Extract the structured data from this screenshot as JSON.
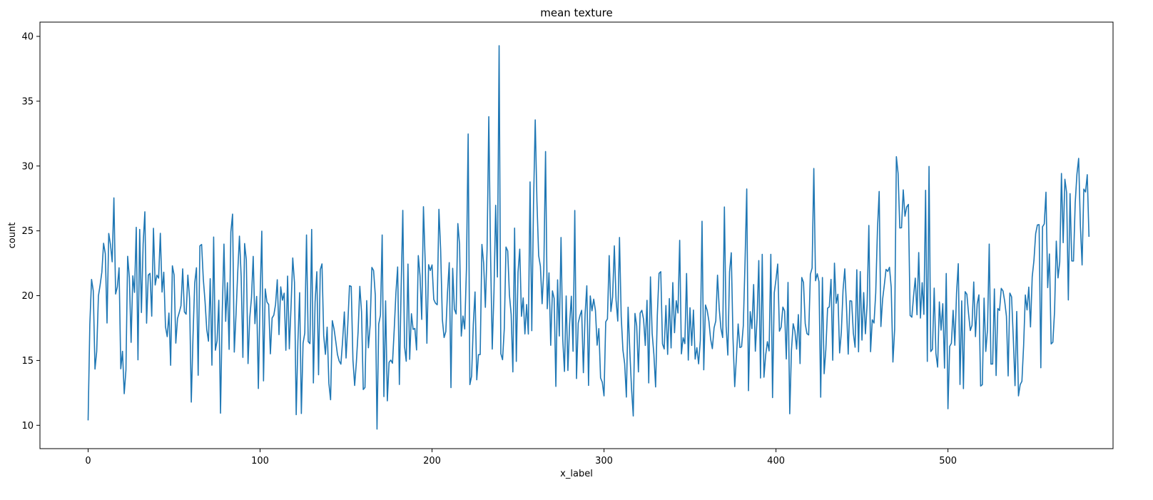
{
  "chart_data": {
    "type": "line",
    "title": "mean texture",
    "xlabel": "x_label",
    "ylabel": "count",
    "xlim": [
      -28,
      596
    ],
    "ylim": [
      8.2,
      41.1
    ],
    "xticks": [
      0,
      100,
      200,
      300,
      400,
      500
    ],
    "yticks": [
      10,
      15,
      20,
      25,
      30,
      35,
      40
    ],
    "grid": false,
    "legend": "none",
    "series": [
      {
        "color": "#1f77b4",
        "x_start": 0,
        "values": [
          10.38,
          17.77,
          21.25,
          20.38,
          14.34,
          15.7,
          19.98,
          20.83,
          21.82,
          24.04,
          23.24,
          17.89,
          24.8,
          23.95,
          22.61,
          27.54,
          20.13,
          20.68,
          22.15,
          14.36,
          15.71,
          12.44,
          14.26,
          23.04,
          21.38,
          16.4,
          21.53,
          20.25,
          25.27,
          15.05,
          25.11,
          18.7,
          23.98,
          26.47,
          17.88,
          21.59,
          21.72,
          18.42,
          25.2,
          20.82,
          21.58,
          21.35,
          24.81,
          20.28,
          21.81,
          17.6,
          16.84,
          18.66,
          14.63,
          22.3,
          21.6,
          16.34,
          18.24,
          18.7,
          19.22,
          22.07,
          18.75,
          18.57,
          21.59,
          19.8,
          11.79,
          16.85,
          20.98,
          22.15,
          13.86,
          23.84,
          23.95,
          21.26,
          19.56,
          17.38,
          16.49,
          21.31,
          14.64,
          24.52,
          15.79,
          16.52,
          19.65,
          10.94,
          18.72,
          23.98,
          18.02,
          21.0,
          15.86,
          24.91,
          26.29,
          15.65,
          18.52,
          21.78,
          24.59,
          21.48,
          15.24,
          24.02,
          22.76,
          14.76,
          18.3,
          19.83,
          23.03,
          17.84,
          19.94,
          12.84,
          19.77,
          24.98,
          13.43,
          20.52,
          19.51,
          19.32,
          15.51,
          18.28,
          18.5,
          19.33,
          21.23,
          17.0,
          20.68,
          19.65,
          20.19,
          15.79,
          21.51,
          15.9,
          19.13,
          22.91,
          21.01,
          10.82,
          16.46,
          20.23,
          10.91,
          16.33,
          17.12,
          24.68,
          16.46,
          16.3,
          25.11,
          13.27,
          19.53,
          21.85,
          13.9,
          22.0,
          22.45,
          16.93,
          15.47,
          17.57,
          13.25,
          11.97,
          18.07,
          17.45,
          16.49,
          15.46,
          14.96,
          14.72,
          16.53,
          18.75,
          15.19,
          17.76,
          20.77,
          20.71,
          15.04,
          13.07,
          14.88,
          17.22,
          20.72,
          18.73,
          12.76,
          12.92,
          19.62,
          15.98,
          17.72,
          22.18,
          21.94,
          20.04,
          9.71,
          17.81,
          18.5,
          24.68,
          12.22,
          19.6,
          11.89,
          14.86,
          15.03,
          14.79,
          17.37,
          20.22,
          22.21,
          13.15,
          20.37,
          26.58,
          16.08,
          14.94,
          22.44,
          15.09,
          18.61,
          17.4,
          17.47,
          15.81,
          23.09,
          21.56,
          18.17,
          26.86,
          22.7,
          16.33,
          22.39,
          21.94,
          22.37,
          19.71,
          19.42,
          19.3,
          26.66,
          23.55,
          18.16,
          16.77,
          17.23,
          20.27,
          22.55,
          12.91,
          22.11,
          18.96,
          18.59,
          25.56,
          23.96,
          16.88,
          18.43,
          17.43,
          22.05,
          32.47,
          13.14,
          13.79,
          17.79,
          20.29,
          13.51,
          15.45,
          15.46,
          23.95,
          22.51,
          19.1,
          23.56,
          33.81,
          23.41,
          15.88,
          20.21,
          26.97,
          21.44,
          39.28,
          15.53,
          15.06,
          17.43,
          23.75,
          23.45,
          20.05,
          18.57,
          14.12,
          25.21,
          14.93,
          21.81,
          23.59,
          18.41,
          19.83,
          17.05,
          19.32,
          17.04,
          28.77,
          17.3,
          26.98,
          33.56,
          27.25,
          23.09,
          22.28,
          19.38,
          22.04,
          31.12,
          18.99,
          21.76,
          16.17,
          20.37,
          19.79,
          13.0,
          21.22,
          16.89,
          24.49,
          16.64,
          14.16,
          19.98,
          14.23,
          17.8,
          19.96,
          15.71,
          26.57,
          13.61,
          17.89,
          18.46,
          18.87,
          14.06,
          18.58,
          20.76,
          13.08,
          19.98,
          18.83,
          19.73,
          18.87,
          16.18,
          17.46,
          13.66,
          13.32,
          12.27,
          17.98,
          18.21,
          23.09,
          18.78,
          19.91,
          23.84,
          19.66,
          18.04,
          24.49,
          18.39,
          15.8,
          14.76,
          12.18,
          19.11,
          15.72,
          12.84,
          10.72,
          18.63,
          17.67,
          14.12,
          18.66,
          18.87,
          18.18,
          16.16,
          19.64,
          13.27,
          21.45,
          17.09,
          15.47,
          12.96,
          18.51,
          21.72,
          21.85,
          16.28,
          15.89,
          19.24,
          15.47,
          19.78,
          15.97,
          21.01,
          17.14,
          19.61,
          18.66,
          24.27,
          15.51,
          16.76,
          16.3,
          21.71,
          15.03,
          19.07,
          16.16,
          18.89,
          15.11,
          15.99,
          14.74,
          16.54,
          25.74,
          14.28,
          19.28,
          18.86,
          18.03,
          16.63,
          15.91,
          17.52,
          18.05,
          21.58,
          18.99,
          17.46,
          16.77,
          26.84,
          17.66,
          15.42,
          21.83,
          23.31,
          16.74,
          12.98,
          15.24,
          17.82,
          16.0,
          16.06,
          17.69,
          22.58,
          28.23,
          12.67,
          18.77,
          17.46,
          20.86,
          15.72,
          18.22,
          22.71,
          13.65,
          23.19,
          13.71,
          15.42,
          16.45,
          15.74,
          23.19,
          12.14,
          20.22,
          21.25,
          22.44,
          17.26,
          17.57,
          19.12,
          18.82,
          15.12,
          21.02,
          10.89,
          15.79,
          17.83,
          17.26,
          15.88,
          18.54,
          14.76,
          21.4,
          21.02,
          17.85,
          17.07,
          16.97,
          21.65,
          22.13,
          29.81,
          21.15,
          21.69,
          21.08,
          12.17,
          21.4,
          13.98,
          15.87,
          19.03,
          19.14,
          21.26,
          15.02,
          22.51,
          19.41,
          20.11,
          15.58,
          17.19,
          20.44,
          22.07,
          19.13,
          15.49,
          19.61,
          19.58,
          17.09,
          16.02,
          22.0,
          15.67,
          21.86,
          16.57,
          20.24,
          17.06,
          19.34,
          25.42,
          15.68,
          18.14,
          17.89,
          20.2,
          25.08,
          28.04,
          17.62,
          19.72,
          20.83,
          22.03,
          21.87,
          22.19,
          20.64,
          14.88,
          17.39,
          30.72,
          29.43,
          25.22,
          25.24,
          28.16,
          26.13,
          26.84,
          27.04,
          18.47,
          18.34,
          19.96,
          21.35,
          18.53,
          23.33,
          18.27,
          21.0,
          18.56,
          28.13,
          14.93,
          29.97,
          15.69,
          15.87,
          20.58,
          15.55,
          14.49,
          19.52,
          17.34,
          19.38,
          14.41,
          21.71,
          11.28,
          16.09,
          16.33,
          18.87,
          16.17,
          20.21,
          22.47,
          13.15,
          19.6,
          12.83,
          20.31,
          20.11,
          18.58,
          17.31,
          17.72,
          21.06,
          16.84,
          19.37,
          20.06,
          13.03,
          13.14,
          19.81,
          15.7,
          17.37,
          23.98,
          14.72,
          14.73,
          20.52,
          13.84,
          19.01,
          18.86,
          20.56,
          20.37,
          19.56,
          18.42,
          13.81,
          20.2,
          19.91,
          16.72,
          13.06,
          18.78,
          12.27,
          13.14,
          13.39,
          16.15,
          20.05,
          18.9,
          20.66,
          17.59,
          21.46,
          22.71,
          24.78,
          25.45,
          25.48,
          14.44,
          25.32,
          25.53,
          27.98,
          20.62,
          23.22,
          16.28,
          16.41,
          18.8,
          24.21,
          21.37,
          22.6,
          29.43,
          24.09,
          28.98,
          27.96,
          19.67,
          27.87,
          22.68,
          22.67,
          27.15,
          29.37,
          30.59,
          25.42,
          22.37,
          28.22,
          28.0,
          29.33,
          24.54
        ]
      }
    ]
  }
}
